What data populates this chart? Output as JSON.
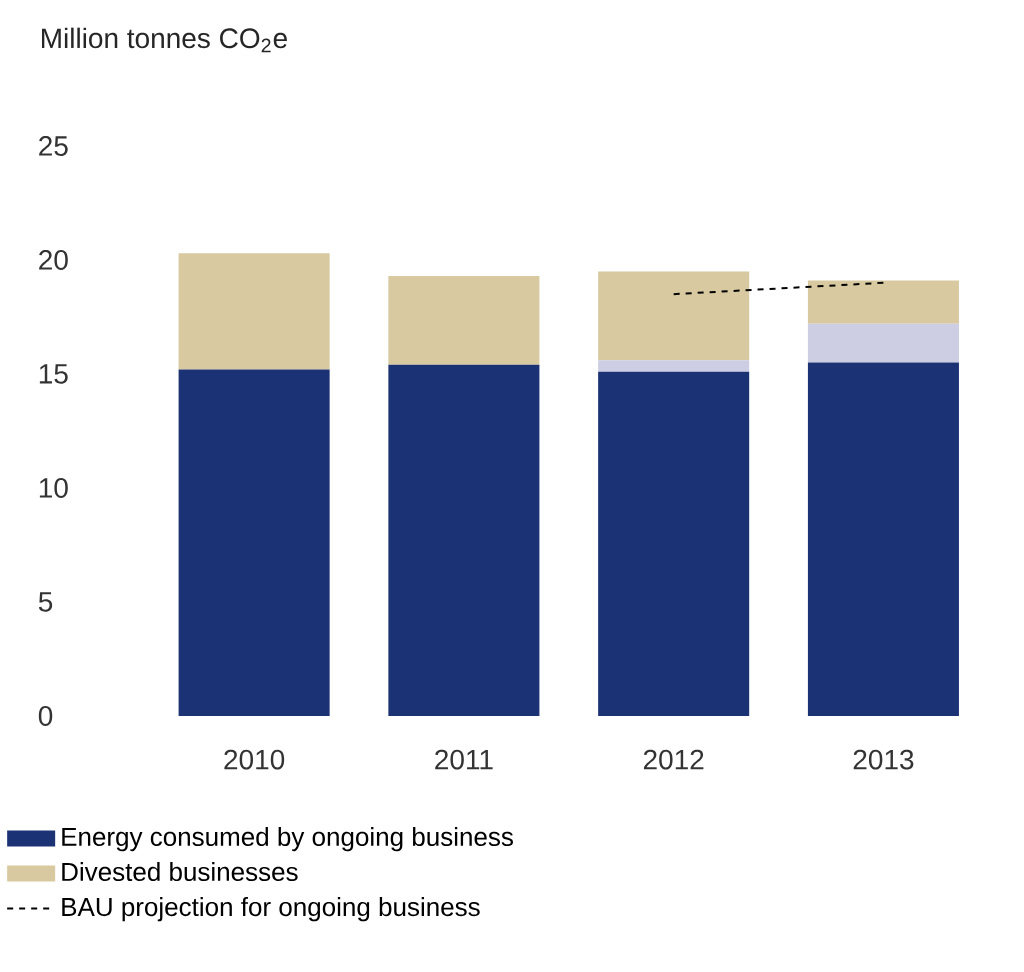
{
  "chart_data": {
    "type": "bar",
    "stacked": true,
    "ylabel": "Million tonnes CO$_{2}$e",
    "categories": [
      "2010",
      "2011",
      "2012",
      "2013"
    ],
    "series": [
      {
        "name": "Energy consumed by ongoing business",
        "color": "#1b3275",
        "values": [
          15.2,
          15.4,
          15.1,
          15.5
        ]
      },
      {
        "color": "#cdcde3",
        "values": [
          0,
          0,
          0.5,
          1.7
        ]
      },
      {
        "name": "Divested businesses",
        "color": "#d8c9a0",
        "values": [
          5.1,
          3.9,
          3.9,
          1.9
        ]
      },
      {
        "name": "BAU projection for ongoing business",
        "type": "line",
        "color": "#000000",
        "line_style": "dashed",
        "values": [
          null,
          null,
          18.5,
          19.0
        ]
      }
    ],
    "ylim": [
      0,
      25
    ],
    "yticks": [
      0,
      5,
      10,
      15,
      20,
      25
    ],
    "grid": false,
    "legend": "bottom"
  }
}
